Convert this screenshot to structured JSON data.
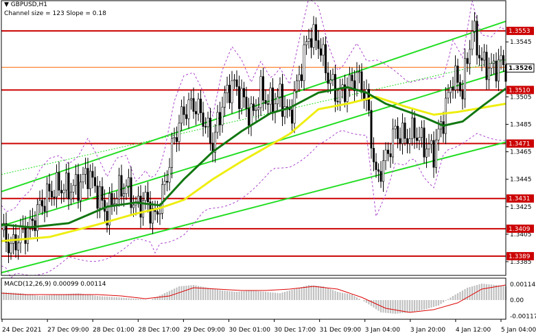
{
  "header": {
    "symbol_line": "GBPUSD,H1",
    "channel_line": "Channel size = 123 Slope = 0.18"
  },
  "macd_label": "MACD(12,26,9) 0.00099 0.00114",
  "colors": {
    "background": "#ffffff",
    "candle": "#000000",
    "level_line": "#cc0000",
    "price_label_bg": "#cc0000",
    "channel_line": "#22dd22",
    "channel_mid": "#22dd22",
    "ma_fast": "#117711",
    "ma_slow": "#eeee11",
    "envelope": "#aa44cc",
    "macd_hist": "#c0c0c0",
    "macd_signal": "#dd0000",
    "current_price_line": "#ff6600",
    "axis": "#000000"
  },
  "chart_data": {
    "type": "candlestick",
    "symbol": "GBPUSD",
    "timeframe": "H1",
    "ylim": [
      1.3375,
      1.3575
    ],
    "y_ticks": [
      "1.3545",
      "1.3526",
      "1.3505",
      "1.3485",
      "1.3465",
      "1.3445",
      "1.3425",
      "1.3405",
      "1.3385"
    ],
    "x_ticks": [
      "24 Dec 2021",
      "27 Dec 09:00",
      "28 Dec 01:00",
      "28 Dec 17:00",
      "29 Dec 09:00",
      "30 Dec 01:00",
      "30 Dec 17:00",
      "31 Dec 09:00",
      "3 Jan 04:00",
      "3 Jan 20:00",
      "4 Jan 12:00",
      "5 Jan 04:00"
    ],
    "levels": [
      {
        "value": 1.3553,
        "label": "1.3553"
      },
      {
        "value": 1.351,
        "label": "1.3510"
      },
      {
        "value": 1.3471,
        "label": "1.3471"
      },
      {
        "value": 1.3431,
        "label": "1.3431"
      },
      {
        "value": 1.3409,
        "label": "1.3409"
      },
      {
        "value": 1.3389,
        "label": "1.3389"
      }
    ],
    "current_price": {
      "value": 1.3526,
      "label": "1.3526"
    },
    "channel": {
      "start": [
        1.3411,
        1.3436
      ],
      "end": [
        1.3524,
        1.356
      ],
      "size": 123,
      "slope": 0.18
    },
    "close_path": [
      [
        0,
        1.3408
      ],
      [
        4,
        1.3395
      ],
      [
        8,
        1.3405
      ],
      [
        12,
        1.341
      ],
      [
        16,
        1.3425
      ],
      [
        20,
        1.3435
      ],
      [
        24,
        1.344
      ],
      [
        28,
        1.3438
      ],
      [
        32,
        1.344
      ],
      [
        36,
        1.345
      ],
      [
        40,
        1.3435
      ],
      [
        44,
        1.342
      ],
      [
        48,
        1.3435
      ],
      [
        52,
        1.344
      ],
      [
        56,
        1.3425
      ],
      [
        60,
        1.343
      ],
      [
        64,
        1.3416
      ],
      [
        68,
        1.344
      ],
      [
        72,
        1.3475
      ],
      [
        76,
        1.3495
      ],
      [
        80,
        1.35
      ],
      [
        84,
        1.349
      ],
      [
        88,
        1.347
      ],
      [
        92,
        1.35
      ],
      [
        96,
        1.3515
      ],
      [
        100,
        1.3505
      ],
      [
        104,
        1.349
      ],
      [
        108,
        1.3508
      ],
      [
        112,
        1.35
      ],
      [
        116,
        1.3505
      ],
      [
        120,
        1.349
      ],
      [
        124,
        1.352
      ],
      [
        128,
        1.355
      ],
      [
        132,
        1.3545
      ],
      [
        136,
        1.352
      ],
      [
        140,
        1.3505
      ],
      [
        144,
        1.3512
      ],
      [
        148,
        1.352
      ],
      [
        152,
        1.3505
      ],
      [
        156,
        1.3445
      ],
      [
        160,
        1.346
      ],
      [
        164,
        1.348
      ],
      [
        168,
        1.3475
      ],
      [
        172,
        1.348
      ],
      [
        176,
        1.347
      ],
      [
        180,
        1.3465
      ],
      [
        184,
        1.349
      ],
      [
        188,
        1.352
      ],
      [
        192,
        1.351
      ],
      [
        196,
        1.3555
      ],
      [
        200,
        1.353
      ],
      [
        204,
        1.3525
      ],
      [
        208,
        1.353
      ],
      [
        210,
        1.3526
      ]
    ],
    "ma_fast_path": [
      [
        0,
        1.3412
      ],
      [
        12,
        1.341
      ],
      [
        28,
        1.3413
      ],
      [
        44,
        1.3425
      ],
      [
        56,
        1.3428
      ],
      [
        66,
        1.3426
      ],
      [
        76,
        1.3445
      ],
      [
        88,
        1.3465
      ],
      [
        100,
        1.348
      ],
      [
        112,
        1.3493
      ],
      [
        120,
        1.3497
      ],
      [
        132,
        1.3508
      ],
      [
        144,
        1.3512
      ],
      [
        152,
        1.3508
      ],
      [
        160,
        1.35
      ],
      [
        168,
        1.3495
      ],
      [
        176,
        1.349
      ],
      [
        184,
        1.3484
      ],
      [
        192,
        1.3487
      ],
      [
        200,
        1.3498
      ],
      [
        210,
        1.3511
      ]
    ],
    "ma_slow_path": [
      [
        0,
        1.34
      ],
      [
        20,
        1.3403
      ],
      [
        40,
        1.3412
      ],
      [
        56,
        1.342
      ],
      [
        66,
        1.3424
      ],
      [
        76,
        1.343
      ],
      [
        88,
        1.3445
      ],
      [
        100,
        1.3458
      ],
      [
        112,
        1.347
      ],
      [
        120,
        1.3478
      ],
      [
        132,
        1.3496
      ],
      [
        144,
        1.35
      ],
      [
        156,
        1.3505
      ],
      [
        168,
        1.3498
      ],
      [
        180,
        1.3492
      ],
      [
        190,
        1.3494
      ],
      [
        200,
        1.3497
      ],
      [
        210,
        1.35
      ]
    ],
    "macd": {
      "label": "MACD(12,26,9) 0.00099 0.00114",
      "ylim": [
        -0.0014,
        0.0016
      ],
      "ticks": [
        "0.00114",
        "0.00",
        "-0.00117"
      ],
      "hist": [
        [
          0,
          0.0006
        ],
        [
          8,
          0.0005
        ],
        [
          16,
          0.0003
        ],
        [
          24,
          0.0004
        ],
        [
          32,
          0.0005
        ],
        [
          40,
          0.0003
        ],
        [
          48,
          0.0002
        ],
        [
          56,
          0.0001
        ],
        [
          62,
          0.0
        ],
        [
          68,
          0.0005
        ],
        [
          74,
          0.001
        ],
        [
          80,
          0.0011
        ],
        [
          86,
          0.0009
        ],
        [
          92,
          0.0007
        ],
        [
          98,
          0.0006
        ],
        [
          104,
          0.0007
        ],
        [
          110,
          0.0006
        ],
        [
          116,
          0.0005
        ],
        [
          122,
          0.0008
        ],
        [
          128,
          0.0011
        ],
        [
          134,
          0.001
        ],
        [
          140,
          0.0006
        ],
        [
          146,
          0.0004
        ],
        [
          152,
          -0.0002
        ],
        [
          158,
          -0.0009
        ],
        [
          164,
          -0.001
        ],
        [
          170,
          -0.0009
        ],
        [
          176,
          -0.0007
        ],
        [
          182,
          -0.0004
        ],
        [
          188,
          0.0003
        ],
        [
          194,
          0.0009
        ],
        [
          200,
          0.0012
        ],
        [
          206,
          0.0011
        ],
        [
          210,
          0.001
        ]
      ],
      "signal": [
        [
          0,
          0.0005
        ],
        [
          10,
          0.0004
        ],
        [
          20,
          0.0004
        ],
        [
          30,
          0.0004
        ],
        [
          40,
          0.0004
        ],
        [
          50,
          0.0003
        ],
        [
          60,
          0.0001
        ],
        [
          70,
          0.0003
        ],
        [
          80,
          0.0009
        ],
        [
          90,
          0.0008
        ],
        [
          100,
          0.0007
        ],
        [
          110,
          0.0007
        ],
        [
          120,
          0.0008
        ],
        [
          130,
          0.001
        ],
        [
          140,
          0.0008
        ],
        [
          150,
          0.0002
        ],
        [
          160,
          -0.0006
        ],
        [
          170,
          -0.0009
        ],
        [
          180,
          -0.0007
        ],
        [
          190,
          -0.0002
        ],
        [
          200,
          0.0008
        ],
        [
          210,
          0.0011
        ]
      ]
    }
  }
}
